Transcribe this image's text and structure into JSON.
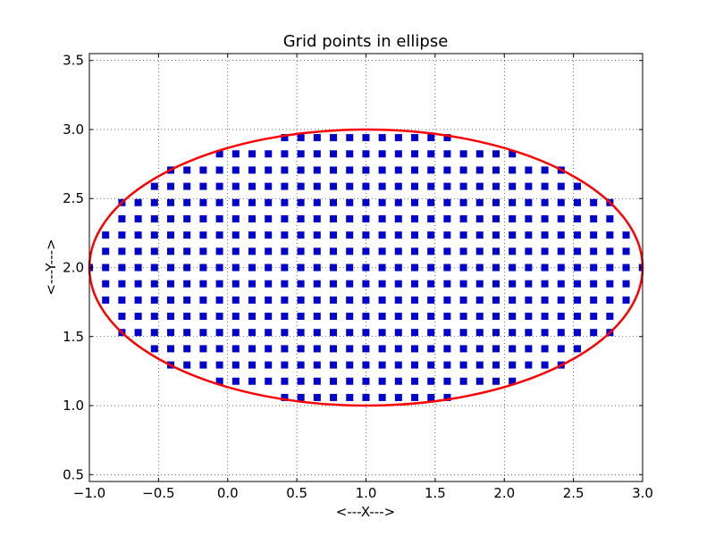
{
  "chart_data": {
    "type": "scatter",
    "title": "Grid points in ellipse",
    "xlabel": "<---X--->",
    "ylabel": "<---Y--->",
    "xlim": [
      -1.0,
      3.0
    ],
    "ylim": [
      0.45,
      3.55
    ],
    "xticks": [
      "−1.0",
      "−0.5",
      "0.0",
      "0.5",
      "1.0",
      "1.5",
      "2.0",
      "2.5",
      "3.0"
    ],
    "xtick_values": [
      -1.0,
      -0.5,
      0.0,
      0.5,
      1.0,
      1.5,
      2.0,
      2.5,
      3.0
    ],
    "yticks": [
      "0.5",
      "1.0",
      "1.5",
      "2.0",
      "2.5",
      "3.0",
      "3.5"
    ],
    "ytick_values": [
      0.5,
      1.0,
      1.5,
      2.0,
      2.5,
      3.0,
      3.5
    ],
    "grid": true,
    "grid_style": "dotted",
    "ellipse": {
      "center": [
        1.0,
        2.0
      ],
      "rx": 2.0,
      "ry": 1.0,
      "color": "#ff0000"
    },
    "points": {
      "color": "#0000cc",
      "marker": "square",
      "x_start": -1.0,
      "x_step": 0.1176,
      "y_start": 1.0588,
      "y_step": 0.1176,
      "rows": [
        {
          "y": 2.9412,
          "x_from": 0.4118,
          "x_to": 1.5882
        },
        {
          "y": 2.8235,
          "x_from": -0.0588,
          "x_to": 2.0588
        },
        {
          "y": 2.7059,
          "x_from": -0.4118,
          "x_to": 2.4118
        },
        {
          "y": 2.5882,
          "x_from": -0.5294,
          "x_to": 2.5294
        },
        {
          "y": 2.4706,
          "x_from": -0.7647,
          "x_to": 2.7647
        },
        {
          "y": 2.3529,
          "x_from": -0.7647,
          "x_to": 2.7647
        },
        {
          "y": 2.2353,
          "x_from": -0.8824,
          "x_to": 2.8824
        },
        {
          "y": 2.1176,
          "x_from": -0.8824,
          "x_to": 2.8824
        },
        {
          "y": 2.0,
          "x_from": -1.0,
          "x_to": 3.0
        },
        {
          "y": 1.8824,
          "x_from": -0.8824,
          "x_to": 2.8824
        },
        {
          "y": 1.7647,
          "x_from": -0.8824,
          "x_to": 2.8824
        },
        {
          "y": 1.6471,
          "x_from": -0.7647,
          "x_to": 2.7647
        },
        {
          "y": 1.5294,
          "x_from": -0.7647,
          "x_to": 2.7647
        },
        {
          "y": 1.4118,
          "x_from": -0.5294,
          "x_to": 2.5294
        },
        {
          "y": 1.2941,
          "x_from": -0.4118,
          "x_to": 2.4118
        },
        {
          "y": 1.1765,
          "x_from": -0.0588,
          "x_to": 2.0588
        },
        {
          "y": 1.0588,
          "x_from": 0.4118,
          "x_to": 1.5882
        }
      ]
    }
  }
}
